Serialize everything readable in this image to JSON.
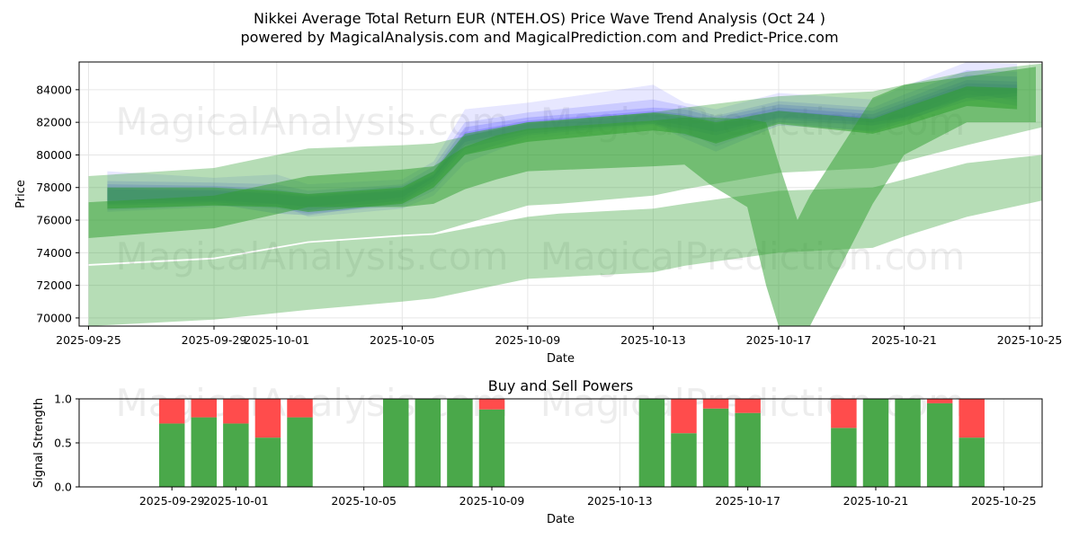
{
  "title_line1": "Nikkei Average Total Return EUR (NTEH.OS) Price Wave Trend Analysis (Oct 24 )",
  "title_line2": "powered by MagicalAnalysis.com and MagicalPrediction.com and Predict-Price.com",
  "watermarks": [
    "MagicalAnalysis.com",
    "MagicalPrediction.com"
  ],
  "colors": {
    "blue_wave": "#3b3bff",
    "green_wave": "#2e9e2e",
    "buy": "#4aa84a",
    "sell": "#ff4c4c",
    "grid": "#e6e6e6"
  },
  "chart_data": [
    {
      "type": "area",
      "title": "",
      "xlabel": "Date",
      "ylabel": "Price",
      "x_start": "2025-09-25",
      "xlim": [
        -0.3,
        30.4
      ],
      "ylim": [
        69500,
        85700
      ],
      "x_tick_labels": [
        {
          "day": 0,
          "label": "2025-09-25"
        },
        {
          "day": 4,
          "label": "2025-09-29"
        },
        {
          "day": 6,
          "label": "2025-10-01"
        },
        {
          "day": 10,
          "label": "2025-10-05"
        },
        {
          "day": 14,
          "label": "2025-10-09"
        },
        {
          "day": 18,
          "label": "2025-10-13"
        },
        {
          "day": 22,
          "label": "2025-10-17"
        },
        {
          "day": 26,
          "label": "2025-10-21"
        },
        {
          "day": 30,
          "label": "2025-10-25"
        }
      ],
      "y_ticks": [
        70000,
        72000,
        74000,
        76000,
        78000,
        80000,
        82000,
        84000
      ],
      "grid": true,
      "series": [
        {
          "name": "wave-blue-1",
          "color": "blue",
          "opacity": 0.12,
          "x": [
            0.6,
            4,
            6,
            7,
            10,
            11,
            12,
            14,
            18,
            19,
            20,
            22,
            25,
            26,
            28,
            29.6
          ],
          "lower": [
            76500,
            76800,
            77000,
            76200,
            76700,
            77500,
            79500,
            81000,
            81800,
            81500,
            80500,
            82000,
            81800,
            82300,
            84000,
            83200
          ],
          "upper": [
            79000,
            78600,
            78800,
            78200,
            78500,
            79600,
            82800,
            83200,
            84300,
            83200,
            82800,
            83800,
            83400,
            84200,
            85700,
            85600
          ]
        },
        {
          "name": "wave-blue-2",
          "color": "blue",
          "opacity": 0.16,
          "x": [
            0.6,
            4,
            6,
            7,
            10,
            11,
            12,
            14,
            18,
            19,
            20,
            22,
            25,
            26,
            28,
            29.6
          ],
          "lower": [
            76600,
            76900,
            76700,
            76400,
            76900,
            77800,
            80000,
            81200,
            81900,
            81000,
            80200,
            81800,
            81500,
            82200,
            83700,
            83400
          ],
          "upper": [
            78400,
            78300,
            78200,
            77800,
            78200,
            79300,
            82000,
            82600,
            83400,
            83000,
            82400,
            83300,
            82900,
            83700,
            85200,
            85100
          ]
        },
        {
          "name": "wave-blue-3",
          "color": "blue",
          "opacity": 0.2,
          "x": [
            0.6,
            4,
            6,
            7,
            10,
            11,
            12,
            14,
            18,
            19,
            20,
            22,
            25,
            26,
            28,
            29.6
          ],
          "lower": [
            76900,
            77000,
            76400,
            76300,
            77100,
            78200,
            80400,
            81300,
            82000,
            81200,
            80800,
            82000,
            81400,
            82000,
            83500,
            83000
          ],
          "upper": [
            78200,
            78100,
            77900,
            77600,
            78100,
            79000,
            81700,
            82300,
            82900,
            82800,
            82300,
            83100,
            82700,
            83400,
            84900,
            84800
          ]
        },
        {
          "name": "wave-blue-4",
          "color": "blue",
          "opacity": 0.22,
          "x": [
            0.6,
            4,
            6,
            7,
            10,
            11,
            12,
            14,
            18,
            19,
            20,
            22,
            25,
            26,
            28,
            29.6
          ],
          "lower": [
            77000,
            77100,
            76800,
            76600,
            77200,
            78400,
            80600,
            81500,
            81900,
            81600,
            81200,
            82200,
            81800,
            82100,
            83300,
            83600
          ],
          "upper": [
            78000,
            77900,
            77700,
            77500,
            77900,
            78800,
            81400,
            82100,
            82700,
            82500,
            82100,
            82900,
            82500,
            83200,
            84600,
            84500
          ]
        },
        {
          "name": "wave-blue-5",
          "color": "blue",
          "opacity": 0.25,
          "x": [
            0.6,
            4,
            6,
            7,
            10,
            11,
            12,
            14,
            18,
            19,
            20,
            22,
            25,
            26,
            28,
            29.6
          ],
          "lower": [
            77200,
            77200,
            77000,
            76800,
            77400,
            78600,
            80800,
            81600,
            82100,
            81800,
            81400,
            82300,
            82000,
            82300,
            83500,
            83800
          ],
          "upper": [
            77900,
            77800,
            77600,
            77400,
            77800,
            78700,
            81200,
            81900,
            82500,
            82300,
            81900,
            82700,
            82300,
            83000,
            84400,
            84300
          ]
        },
        {
          "name": "wave-green-1",
          "color": "green",
          "opacity": 0.35,
          "x": [
            0,
            4,
            7,
            10,
            11,
            14,
            15,
            18,
            19,
            22,
            25,
            26,
            28,
            30.4
          ],
          "lower": [
            69500,
            69900,
            70500,
            71000,
            71200,
            72400,
            72500,
            72800,
            73200,
            74000,
            74300,
            75000,
            76200,
            77200
          ],
          "upper": [
            73200,
            73600,
            74600,
            75000,
            75100,
            76200,
            76400,
            76700,
            77000,
            77800,
            78000,
            78500,
            79500,
            80000
          ]
        },
        {
          "name": "wave-green-2",
          "color": "green",
          "opacity": 0.35,
          "x": [
            0,
            4,
            7,
            10,
            11,
            14,
            15,
            18,
            19,
            22,
            25,
            26,
            28,
            30.4
          ],
          "lower": [
            73300,
            73700,
            74700,
            75100,
            75200,
            76900,
            77000,
            77500,
            77900,
            78900,
            79200,
            79600,
            80600,
            81700
          ],
          "upper": [
            78700,
            79200,
            80400,
            80600,
            80700,
            82000,
            82100,
            82600,
            82900,
            83600,
            83900,
            84300,
            85100,
            85600
          ]
        },
        {
          "name": "wave-green-3",
          "color": "green",
          "opacity": 0.5,
          "x": [
            0,
            4,
            7,
            10,
            11,
            12,
            13,
            14,
            18,
            19,
            19.8,
            21,
            21.6,
            22,
            22.6,
            23,
            25,
            26,
            28,
            30.2
          ],
          "lower": [
            74900,
            75500,
            76800,
            76800,
            77000,
            77900,
            78500,
            79000,
            79300,
            79400,
            78200,
            76800,
            72000,
            69500,
            69500,
            69500,
            77000,
            80000,
            82000,
            82000
          ],
          "upper": [
            77100,
            77500,
            78700,
            79100,
            79300,
            80500,
            81200,
            81600,
            82100,
            82300,
            82300,
            82200,
            82000,
            79500,
            76000,
            77500,
            83500,
            84300,
            84800,
            85400
          ]
        },
        {
          "name": "wave-green-4",
          "color": "green",
          "opacity": 0.55,
          "x": [
            0.6,
            4,
            6,
            7,
            10,
            11,
            12,
            14,
            18,
            19,
            20,
            22,
            25,
            26,
            28,
            29.6
          ],
          "lower": [
            76700,
            76900,
            76800,
            76500,
            77000,
            78000,
            80000,
            80800,
            81500,
            81300,
            80700,
            81900,
            81300,
            81800,
            83000,
            82800
          ],
          "upper": [
            78000,
            78000,
            77800,
            77600,
            78000,
            79000,
            81300,
            82000,
            82600,
            82400,
            82000,
            82700,
            82200,
            82900,
            84200,
            84100
          ]
        }
      ]
    },
    {
      "type": "bar",
      "title": "Buy and Sell Powers",
      "xlabel": "Date",
      "ylabel": "Signal Strength",
      "x_start": "2025-09-25",
      "xlim": [
        1.1,
        31.2
      ],
      "ylim": [
        0,
        1
      ],
      "y_tick_labels": [
        "0.0",
        "0.5",
        "1.0"
      ],
      "x_tick_labels": [
        {
          "day": 4,
          "label": "2025-09-29"
        },
        {
          "day": 6,
          "label": "2025-10-01"
        },
        {
          "day": 10,
          "label": "2025-10-05"
        },
        {
          "day": 14,
          "label": "2025-10-09"
        },
        {
          "day": 18,
          "label": "2025-10-13"
        },
        {
          "day": 22,
          "label": "2025-10-17"
        },
        {
          "day": 26,
          "label": "2025-10-21"
        },
        {
          "day": 30,
          "label": "2025-10-25"
        }
      ],
      "categories": [
        "2025-09-29",
        "2025-09-30",
        "2025-10-01",
        "2025-10-02",
        "2025-10-03",
        "2025-10-06",
        "2025-10-07",
        "2025-10-08",
        "2025-10-09",
        "2025-10-14",
        "2025-10-15",
        "2025-10-16",
        "2025-10-17",
        "2025-10-20",
        "2025-10-21",
        "2025-10-22",
        "2025-10-23",
        "2025-10-24"
      ],
      "days": [
        4,
        5,
        6,
        7,
        8,
        11,
        12,
        13,
        14,
        19,
        20,
        21,
        22,
        25,
        26,
        27,
        28,
        29
      ],
      "series": [
        {
          "name": "Buy",
          "values": [
            0.72,
            0.79,
            0.72,
            0.56,
            0.79,
            1.0,
            1.0,
            1.0,
            0.88,
            1.0,
            0.61,
            0.89,
            0.84,
            0.67,
            1.0,
            1.0,
            0.95,
            0.56
          ]
        },
        {
          "name": "Sell",
          "values": [
            0.28,
            0.21,
            0.28,
            0.44,
            0.21,
            0.0,
            0.0,
            0.0,
            0.12,
            0.0,
            0.39,
            0.11,
            0.16,
            0.33,
            0.0,
            0.0,
            0.05,
            0.44
          ]
        }
      ],
      "grid": true
    }
  ]
}
